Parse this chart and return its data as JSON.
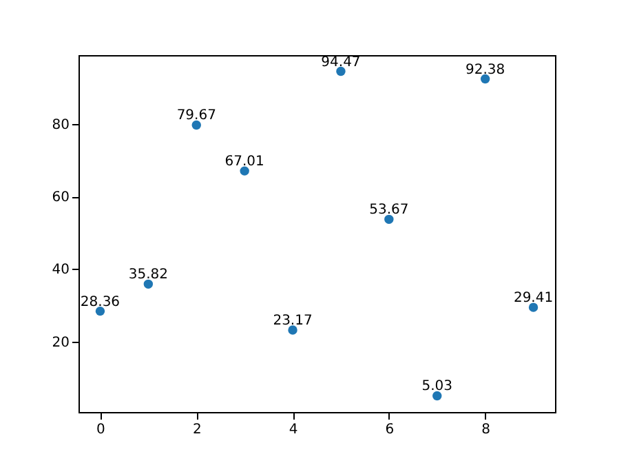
{
  "chart_data": {
    "type": "scatter",
    "x": [
      0,
      1,
      2,
      3,
      4,
      5,
      6,
      7,
      8,
      9
    ],
    "series": [
      {
        "color": "#1f77b4",
        "values": [
          28.36,
          35.82,
          79.67,
          67.01,
          23.17,
          94.47,
          53.67,
          5.03,
          92.38,
          29.41
        ]
      }
    ],
    "data_labels": true,
    "marker": "circle",
    "xlim": [
      -0.45,
      9.45
    ],
    "ylim": [
      0.56,
      98.94
    ],
    "xticks": [
      0,
      2,
      4,
      6,
      8
    ],
    "yticks": [
      20,
      40,
      60,
      80
    ],
    "grid": false
  }
}
